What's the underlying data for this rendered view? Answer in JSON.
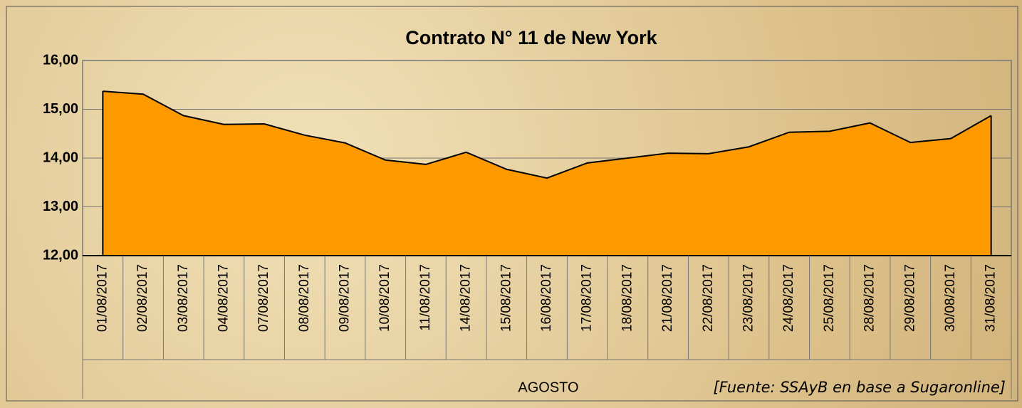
{
  "chart_data": {
    "type": "area",
    "title": "Contrato N° 11 de New York",
    "categories": [
      "01/08/2017",
      "02/08/2017",
      "03/08/2017",
      "04/08/2017",
      "07/08/2017",
      "08/08/2017",
      "09/08/2017",
      "10/08/2017",
      "11/08/2017",
      "14/08/2017",
      "15/08/2017",
      "16/08/2017",
      "17/08/2017",
      "18/08/2017",
      "21/08/2017",
      "22/08/2017",
      "23/08/2017",
      "24/08/2017",
      "25/08/2017",
      "28/08/2017",
      "29/08/2017",
      "30/08/2017",
      "31/08/2017"
    ],
    "values": [
      15.37,
      15.31,
      14.87,
      14.69,
      14.7,
      14.47,
      14.31,
      13.96,
      13.87,
      14.12,
      13.77,
      13.59,
      13.9,
      14.0,
      14.1,
      14.09,
      14.23,
      14.53,
      14.55,
      14.72,
      14.32,
      14.4,
      14.87
    ],
    "color": "#ff9900",
    "ylim": [
      12,
      16
    ],
    "yticks": [
      {
        "value": 12,
        "label": "12,00"
      },
      {
        "value": 13,
        "label": "13,00"
      },
      {
        "value": 14,
        "label": "14,00"
      },
      {
        "value": 15,
        "label": "15,00"
      },
      {
        "value": 16,
        "label": "16,00"
      }
    ],
    "grid": true,
    "x_group": "AGOSTO",
    "source": "[Fuente: SSAyB en base a Sugaronline]"
  }
}
